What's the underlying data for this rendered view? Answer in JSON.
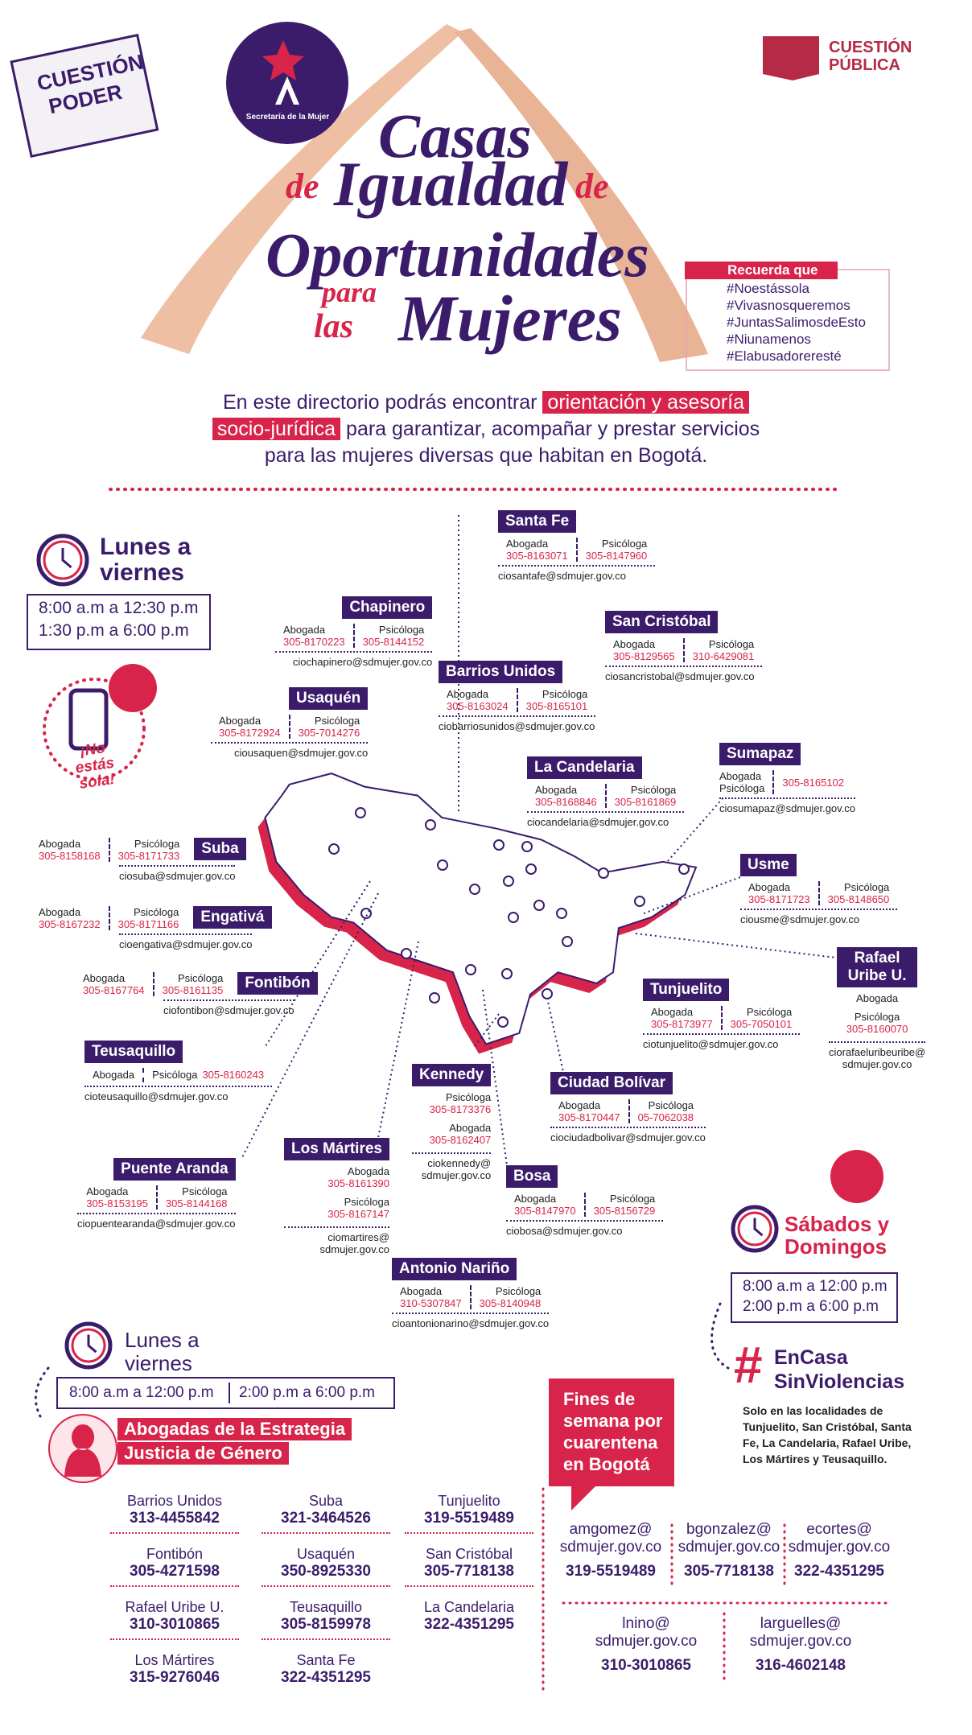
{
  "header": {
    "stamp": [
      "CUESTIÓN",
      "PODER"
    ],
    "secretaria": "Secretaría de la Mujer",
    "brand": [
      "CUESTIÓN",
      "PÚBLICA"
    ],
    "title": [
      "Casas",
      "de",
      "Igualdad",
      "de",
      "Oportunidades",
      "para",
      "las",
      "Mujeres"
    ]
  },
  "reminder": {
    "label": "Recuerda que",
    "hashtags": [
      "#Noestássola",
      "#Vivasnosqueremos",
      "#JuntasSalimosdeEsto",
      "#Niunamenos",
      "#Elabusadoreresté"
    ]
  },
  "intro": {
    "text1": "En este directorio podrás encontrar",
    "highlight1": "orientación y asesoría",
    "highlight2": "socio-jurídica",
    "text2": "para garantizar, acompañar y prestar servicios",
    "text3": "para las mujeres diversas que habitan en Bogotá."
  },
  "schedule_week": {
    "title": "Lunes a viernes",
    "hours": [
      "8:00 a.m a 12:30 p.m",
      "1:30 p.m a 6:00 p.m"
    ]
  },
  "badge": "¡No estás sola!",
  "localities": [
    {
      "name": "Santa Fe",
      "roles": [
        {
          "role": "Abogada",
          "phone": "305-8163071"
        },
        {
          "role": "Psicóloga",
          "phone": "305-8147960"
        }
      ],
      "email": [
        "ciosantafe@sdmujer.gov.co"
      ]
    },
    {
      "name": "Chapinero",
      "roles": [
        {
          "role": "Abogada",
          "phone": "305-8170223"
        },
        {
          "role": "Psicóloga",
          "phone": "305-8144152"
        }
      ],
      "email": [
        "ciochapinero@sdmujer.gov.co"
      ]
    },
    {
      "name": "San Cristóbal",
      "roles": [
        {
          "role": "Abogada",
          "phone": "305-8129565"
        },
        {
          "role": "Psicóloga",
          "phone": "310-6429081"
        }
      ],
      "email": [
        "ciosancristobal@sdmujer.gov.co"
      ]
    },
    {
      "name": "Barrios Unidos",
      "roles": [
        {
          "role": "Abogada",
          "phone": "305-8163024"
        },
        {
          "role": "Psicóloga",
          "phone": "305-8165101"
        }
      ],
      "email": [
        "ciobarriosunidos@sdmujer.gov.co"
      ]
    },
    {
      "name": "Usaquén",
      "roles": [
        {
          "role": "Abogada",
          "phone": "305-8172924"
        },
        {
          "role": "Psicóloga",
          "phone": "305-7014276"
        }
      ],
      "email": [
        "ciousaquen@sdmujer.gov.co"
      ]
    },
    {
      "name": "Sumapaz",
      "roles": [
        {
          "role": "Abogada"
        },
        {
          "role": "Psicóloga",
          "phone": "305-8165102"
        }
      ],
      "email": [
        "ciosumapaz@sdmujer.gov.co"
      ]
    },
    {
      "name": "La Candelaria",
      "roles": [
        {
          "role": "Abogada",
          "phone": "305-8168846"
        },
        {
          "role": "Psicóloga",
          "phone": "305-8161869"
        }
      ],
      "email": [
        "ciocandelaria@sdmujer.gov.co"
      ]
    },
    {
      "name": "Suba",
      "roles": [
        {
          "role": "Abogada",
          "phone": "305-8158168"
        },
        {
          "role": "Psicóloga",
          "phone": "305-8171733"
        }
      ],
      "email": [
        "ciosuba@sdmujer.gov.co"
      ]
    },
    {
      "name": "Usme",
      "roles": [
        {
          "role": "Abogada",
          "phone": "305-8171723"
        },
        {
          "role": "Psicóloga",
          "phone": "305-8148650"
        }
      ],
      "email": [
        "ciousme@sdmujer.gov.co"
      ]
    },
    {
      "name": "Engativá",
      "roles": [
        {
          "role": "Abogada",
          "phone": "305-8167232"
        },
        {
          "role": "Psicóloga",
          "phone": "305-8171166"
        }
      ],
      "email": [
        "cioengativa@sdmujer.gov.co"
      ]
    },
    {
      "name": "Rafael Uribe U.",
      "roles": [
        {
          "role": "Abogada"
        },
        {
          "role": "Psicóloga",
          "phone": "305-8160070"
        }
      ],
      "email": [
        "ciorafaeluribeuribe@",
        "sdmujer.gov.co"
      ]
    },
    {
      "name": "Fontibón",
      "roles": [
        {
          "role": "Abogada",
          "phone": "305-8167764"
        },
        {
          "role": "Psicóloga",
          "phone": "305-8161135"
        }
      ],
      "email": [
        "ciofontibon@sdmujer.gov.co"
      ]
    },
    {
      "name": "Tunjuelito",
      "roles": [
        {
          "role": "Abogada",
          "phone": "305-8173977"
        },
        {
          "role": "Psicóloga",
          "phone": "305-7050101"
        }
      ],
      "email": [
        "ciotunjuelito@sdmujer.gov.co"
      ]
    },
    {
      "name": "Teusaquillo",
      "roles": [
        {
          "role": "Abogada"
        },
        {
          "role": "Psicóloga",
          "phone": "305-8160243"
        }
      ],
      "email": [
        "cioteusaquillo@sdmujer.gov.co"
      ]
    },
    {
      "name": "Kennedy",
      "roles": [
        {
          "role": "Psicóloga",
          "phone": "305-8173376"
        },
        {
          "role": "Abogada",
          "phone": "305-8162407"
        }
      ],
      "email": [
        "ciokennedy@",
        "sdmujer.gov.co"
      ]
    },
    {
      "name": "Ciudad Bolívar",
      "roles": [
        {
          "role": "Abogada",
          "phone": "305-8170447"
        },
        {
          "role": "Psicóloga",
          "phone": "05-7062038"
        }
      ],
      "email": [
        "ciociudadbolivar@sdmujer.gov.co"
      ]
    },
    {
      "name": "Puente Aranda",
      "roles": [
        {
          "role": "Abogada",
          "phone": "305-8153195"
        },
        {
          "role": "Psicóloga",
          "phone": "305-8144168"
        }
      ],
      "email": [
        "ciopuentearanda@sdmujer.gov.co"
      ]
    },
    {
      "name": "Los Mártires",
      "roles": [
        {
          "role": "Abogada",
          "phone": "305-8161390"
        },
        {
          "role": "Psicóloga",
          "phone": "305-8167147"
        }
      ],
      "email": [
        "ciomartires@",
        "sdmujer.gov.co"
      ]
    },
    {
      "name": "Bosa",
      "roles": [
        {
          "role": "Abogada",
          "phone": "305-8147970"
        },
        {
          "role": "Psicóloga",
          "phone": "305-8156729"
        }
      ],
      "email": [
        "ciobosa@sdmujer.gov.co"
      ]
    },
    {
      "name": "Antonio Nariño",
      "roles": [
        {
          "role": "Abogada",
          "phone": "310-5307847"
        },
        {
          "role": "Psicóloga",
          "phone": "305-8140948"
        }
      ],
      "email": [
        "cioantonionarino@sdmujer.gov.co"
      ]
    }
  ],
  "schedule_weekend": {
    "title": [
      "Sábados y",
      "Domingos"
    ],
    "hours": [
      "8:00 a.m a 12:00 p.m",
      "2:00 p.m a 6:00 p.m"
    ]
  },
  "campaign": {
    "hash": "#",
    "lines": [
      "EnCasa",
      "SinViolencias"
    ],
    "note": "Solo en las localidades de Tunjuelito, San Cristóbal, Santa Fe, La Candelaria, Rafael Uribe, Los Mártires y Teusaquillo."
  },
  "lawyers": {
    "schedule_title": [
      "Lunes a",
      "viernes"
    ],
    "hours": [
      "8:00 a.m a 12:00 p.m",
      "2:00 p.m a 6:00 p.m"
    ],
    "title": [
      "Abogadas de la Estrategia",
      "Justicia de Género"
    ],
    "entries": [
      {
        "name": "Barrios Unidos",
        "phone": "313-4455842"
      },
      {
        "name": "Fontibón",
        "phone": "305-4271598"
      },
      {
        "name": "Rafael Uribe U.",
        "phone": "310-3010865"
      },
      {
        "name": "Los Mártires",
        "phone": "315-9276046"
      },
      {
        "name": "Suba",
        "phone": "321-3464526"
      },
      {
        "name": "Usaquén",
        "phone": "350-8925330"
      },
      {
        "name": "Teusaquillo",
        "phone": "305-8159978"
      },
      {
        "name": "Santa Fe",
        "phone": "322-4351295"
      },
      {
        "name": "Tunjuelito",
        "phone": "319-5519489"
      },
      {
        "name": "San Cristóbal",
        "phone": "305-7718138"
      },
      {
        "name": "La Candelaria",
        "phone": "322-4351295"
      }
    ]
  },
  "weekend": {
    "bubble": [
      "Fines de",
      "semana por",
      "cuarentena",
      "en Bogotá"
    ],
    "contacts": [
      {
        "user": "amgomez@",
        "domain": "sdmujer.gov.co",
        "phone": "319-5519489"
      },
      {
        "user": "bgonzalez@",
        "domain": "sdmujer.gov.co",
        "phone": "305-7718138"
      },
      {
        "user": "ecortes@",
        "domain": "sdmujer.gov.co",
        "phone": "322-4351295"
      },
      {
        "user": "lnino@",
        "domain": "sdmujer.gov.co",
        "phone": "310-3010865"
      },
      {
        "user": "larguelles@",
        "domain": "sdmujer.gov.co",
        "phone": "316-4602148"
      }
    ]
  }
}
